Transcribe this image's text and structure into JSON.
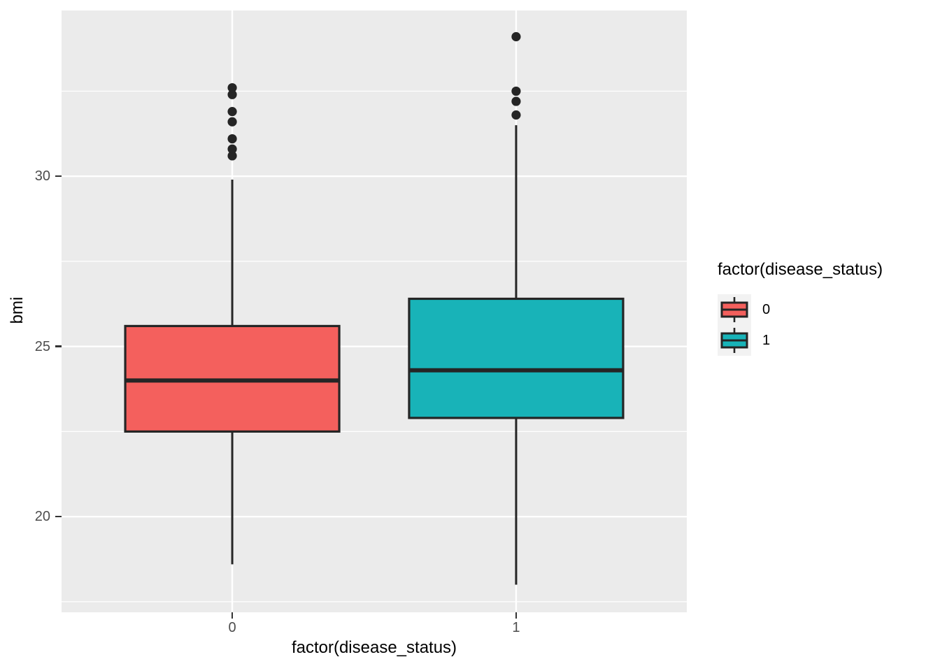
{
  "figure": {
    "background": "#FFFFFF"
  },
  "chart_data": {
    "type": "boxplot",
    "title": "",
    "xlabel": "factor(disease_status)",
    "ylabel": "bmi",
    "categories": [
      "0",
      "1"
    ],
    "y_ticks": [
      20,
      25,
      30
    ],
    "y_minor_ticks": [
      17.5,
      22.5,
      27.5,
      32.5
    ],
    "ylim": [
      17.19,
      34.87
    ],
    "grid": "on",
    "legend_position": "right",
    "panel_bg": "#EBEBEB",
    "grid_color": "#FFFFFF",
    "axis_text_color": "#4D4D4D",
    "axis_title_color": "#000000",
    "box_border_color": "#252525",
    "outlier_color": "#252525",
    "legend": {
      "title": "factor(disease_status)",
      "key_bg": "#F2F2F2",
      "entries": [
        {
          "label": "0",
          "color": "#F4605D"
        },
        {
          "label": "1",
          "color": "#18B3B8"
        }
      ]
    },
    "series": [
      {
        "name": "0",
        "color": "#F4605D",
        "whisker_low": 18.6,
        "q1": 22.5,
        "median": 24.0,
        "q3": 25.6,
        "whisker_high": 29.9,
        "outliers": [
          30.6,
          30.8,
          31.1,
          31.6,
          31.9,
          32.4,
          32.6
        ]
      },
      {
        "name": "1",
        "color": "#18B3B8",
        "whisker_low": 18.0,
        "q1": 22.9,
        "median": 24.3,
        "q3": 26.4,
        "whisker_high": 31.5,
        "outliers": [
          31.8,
          32.2,
          32.5,
          34.1
        ]
      }
    ]
  }
}
